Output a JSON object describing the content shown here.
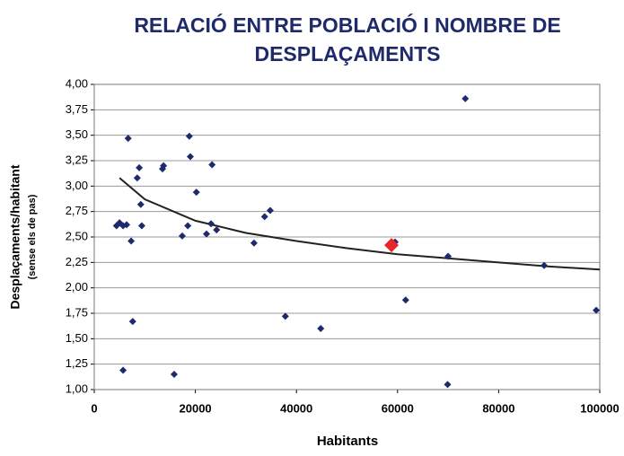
{
  "chart_data": {
    "type": "scatter",
    "title": [
      "RELACIÓ ENTRE POBLACIÓ I NOMBRE DE",
      "DESPLAÇAMENTS"
    ],
    "xlabel": "Habitants",
    "ylabel": [
      "Desplaçaments/habitant",
      "(sense els de pas)"
    ],
    "xlim": [
      0,
      100000
    ],
    "xticks": [
      0,
      20000,
      40000,
      60000,
      80000,
      100000
    ],
    "ylim": [
      1,
      4
    ],
    "yticks": [
      {
        "value": 1,
        "label": "1,00"
      },
      {
        "value": 1.25,
        "label": "1,25"
      },
      {
        "value": 1.5,
        "label": "1,50"
      },
      {
        "value": 1.75,
        "label": "1,75"
      },
      {
        "value": 2,
        "label": "2,00"
      },
      {
        "value": 2.25,
        "label": "2,25"
      },
      {
        "value": 2.5,
        "label": "2,50"
      },
      {
        "value": 2.75,
        "label": "2,75"
      },
      {
        "value": 3,
        "label": "3,00"
      },
      {
        "value": 3.25,
        "label": "3,25"
      },
      {
        "value": 3.5,
        "label": "3,50"
      },
      {
        "value": 3.75,
        "label": "3,75"
      },
      {
        "value": 4,
        "label": "4,00"
      }
    ],
    "grid": true,
    "series": [
      {
        "color": "#1f2a6b",
        "x": [
          5000,
          5700,
          4400,
          6400,
          6700,
          7300,
          7600,
          5700,
          8500,
          8900,
          9200,
          9400,
          13500,
          13700,
          15800,
          17400,
          18500,
          18800,
          19000,
          20200,
          22200,
          23100,
          23300,
          24200,
          31600,
          33700,
          34800,
          37800,
          44800,
          59500,
          61600,
          70000,
          69900,
          73400,
          89000,
          99300
        ],
        "values": [
          2.64,
          2.61,
          2.61,
          2.62,
          3.47,
          2.46,
          1.67,
          1.19,
          3.08,
          3.18,
          2.82,
          2.61,
          3.17,
          3.2,
          1.15,
          2.51,
          2.61,
          3.49,
          3.29,
          2.94,
          2.53,
          2.63,
          3.21,
          2.57,
          2.44,
          2.7,
          2.76,
          1.72,
          1.6,
          2.45,
          1.88,
          2.31,
          1.05,
          3.86,
          2.22,
          1.78
        ]
      },
      {
        "color": "#e8262a",
        "x": [
          58800
        ],
        "values": [
          2.42
        ]
      }
    ],
    "trendline": {
      "color": "#222222",
      "x": [
        5000,
        10000,
        20000,
        30000,
        40000,
        50000,
        60000,
        70000,
        80000,
        90000,
        100000
      ],
      "values": [
        3.08,
        2.87,
        2.66,
        2.54,
        2.46,
        2.39,
        2.33,
        2.29,
        2.25,
        2.21,
        2.18
      ]
    }
  }
}
